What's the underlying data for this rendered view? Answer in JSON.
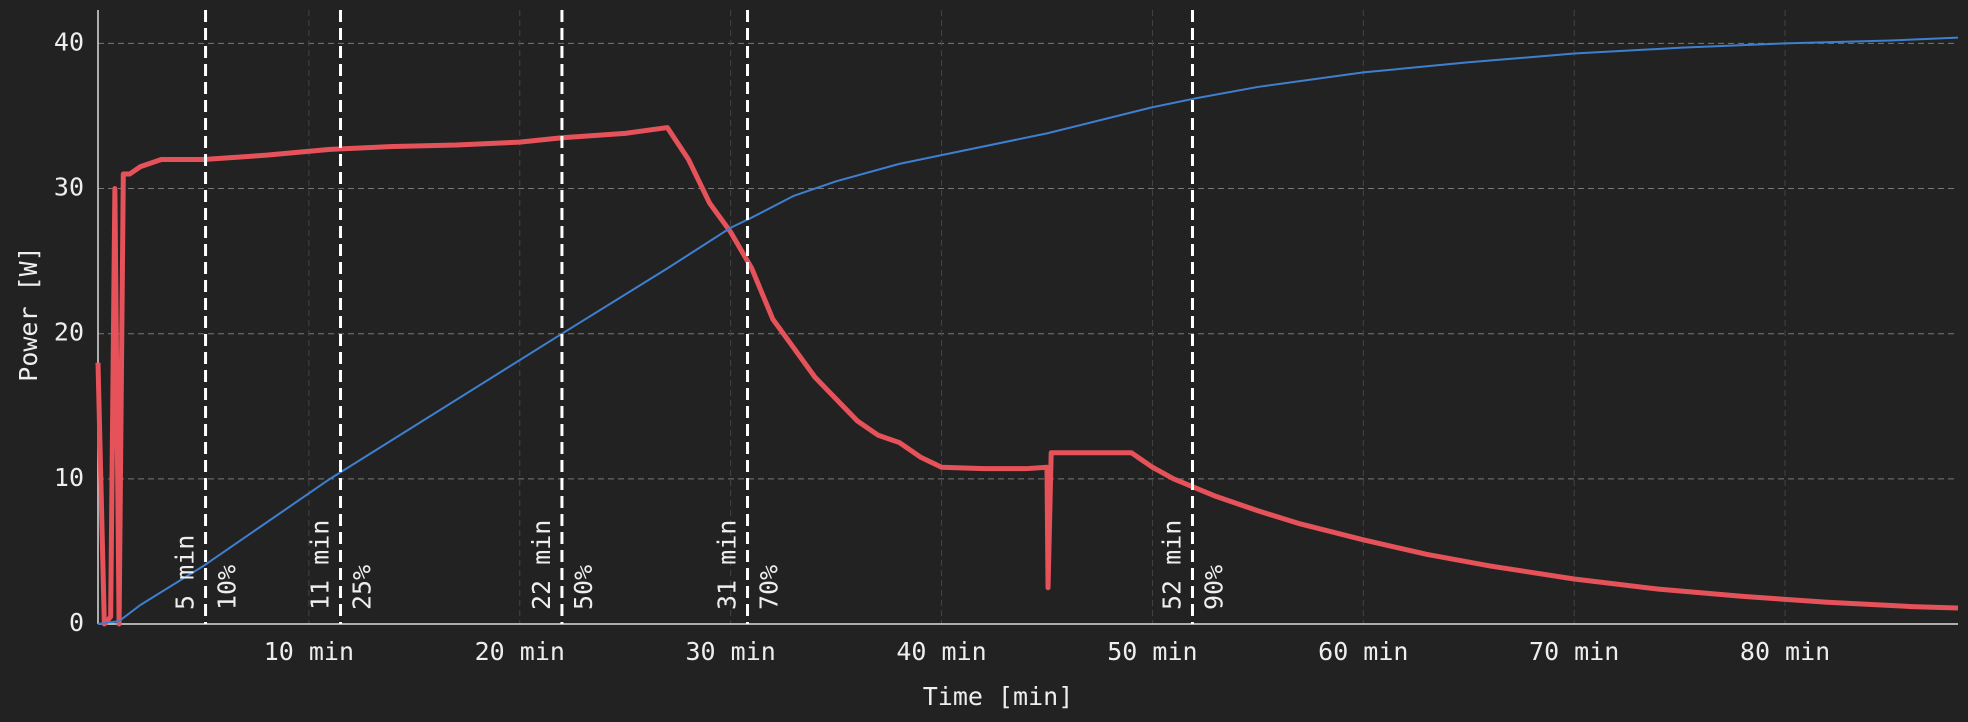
{
  "chart_data": {
    "type": "line",
    "x_label": "Time [min]",
    "y_label": "Power [W]",
    "xlim": [
      0,
      88.2
    ],
    "ylim": [
      0,
      42.3
    ],
    "xticks": [
      {
        "value": 10,
        "label": "10 min"
      },
      {
        "value": 20,
        "label": "20 min"
      },
      {
        "value": 30,
        "label": "30 min"
      },
      {
        "value": 40,
        "label": "40 min"
      },
      {
        "value": 50,
        "label": "50 min"
      },
      {
        "value": 60,
        "label": "60 min"
      },
      {
        "value": 70,
        "label": "70 min"
      },
      {
        "value": 80,
        "label": "80 min"
      }
    ],
    "yticks": [
      0,
      10,
      20,
      30,
      40
    ],
    "grid": true,
    "series": [
      {
        "color": "#e5525a",
        "x": [
          0,
          0.3,
          0.6,
          0.8,
          1.0,
          1.2,
          1.5,
          2,
          3,
          5,
          8,
          11,
          14,
          17,
          20,
          22,
          25,
          27,
          28,
          29,
          30,
          31,
          32,
          33,
          34,
          35,
          36,
          37,
          38,
          39,
          40,
          42,
          44,
          45,
          45.05,
          45.2,
          47,
          49,
          50,
          51,
          52,
          53,
          55,
          57,
          60,
          63,
          66,
          70,
          74,
          78,
          82,
          86,
          88.2
        ],
        "values": [
          18,
          0,
          0.5,
          30,
          0,
          31,
          31,
          31.5,
          32,
          32,
          32.3,
          32.7,
          32.9,
          33,
          33.2,
          33.5,
          33.8,
          34.2,
          32,
          29,
          27,
          24.5,
          21,
          19,
          17,
          15.5,
          14,
          13,
          12.5,
          11.5,
          10.8,
          10.7,
          10.7,
          10.8,
          2.5,
          11.8,
          11.8,
          11.8,
          10.8,
          10,
          9.4,
          8.8,
          7.8,
          6.9,
          5.8,
          4.8,
          4.0,
          3.1,
          2.4,
          1.9,
          1.5,
          1.2,
          1.1
        ]
      },
      {
        "color": "#3f7fd0",
        "x": [
          0,
          1,
          2,
          5,
          11,
          22,
          27,
          30,
          31,
          33,
          35,
          38,
          40,
          45,
          50,
          52,
          55,
          60,
          65,
          70,
          75,
          80,
          85,
          88.2
        ],
        "values": [
          0,
          0.2,
          1.3,
          4,
          10,
          20,
          24.5,
          27.3,
          28,
          29.5,
          30.5,
          31.7,
          32.3,
          33.8,
          35.6,
          36.2,
          37,
          38,
          38.7,
          39.3,
          39.7,
          40,
          40.2,
          40.4
        ]
      }
    ],
    "markers": [
      {
        "x": 5.1,
        "time_label": "5 min",
        "pct_label": "10%"
      },
      {
        "x": 11.5,
        "time_label": "11 min",
        "pct_label": "25%"
      },
      {
        "x": 22.0,
        "time_label": "22 min",
        "pct_label": "50%"
      },
      {
        "x": 30.8,
        "time_label": "31 min",
        "pct_label": "70%"
      },
      {
        "x": 51.9,
        "time_label": "52 min",
        "pct_label": "90%"
      }
    ]
  }
}
